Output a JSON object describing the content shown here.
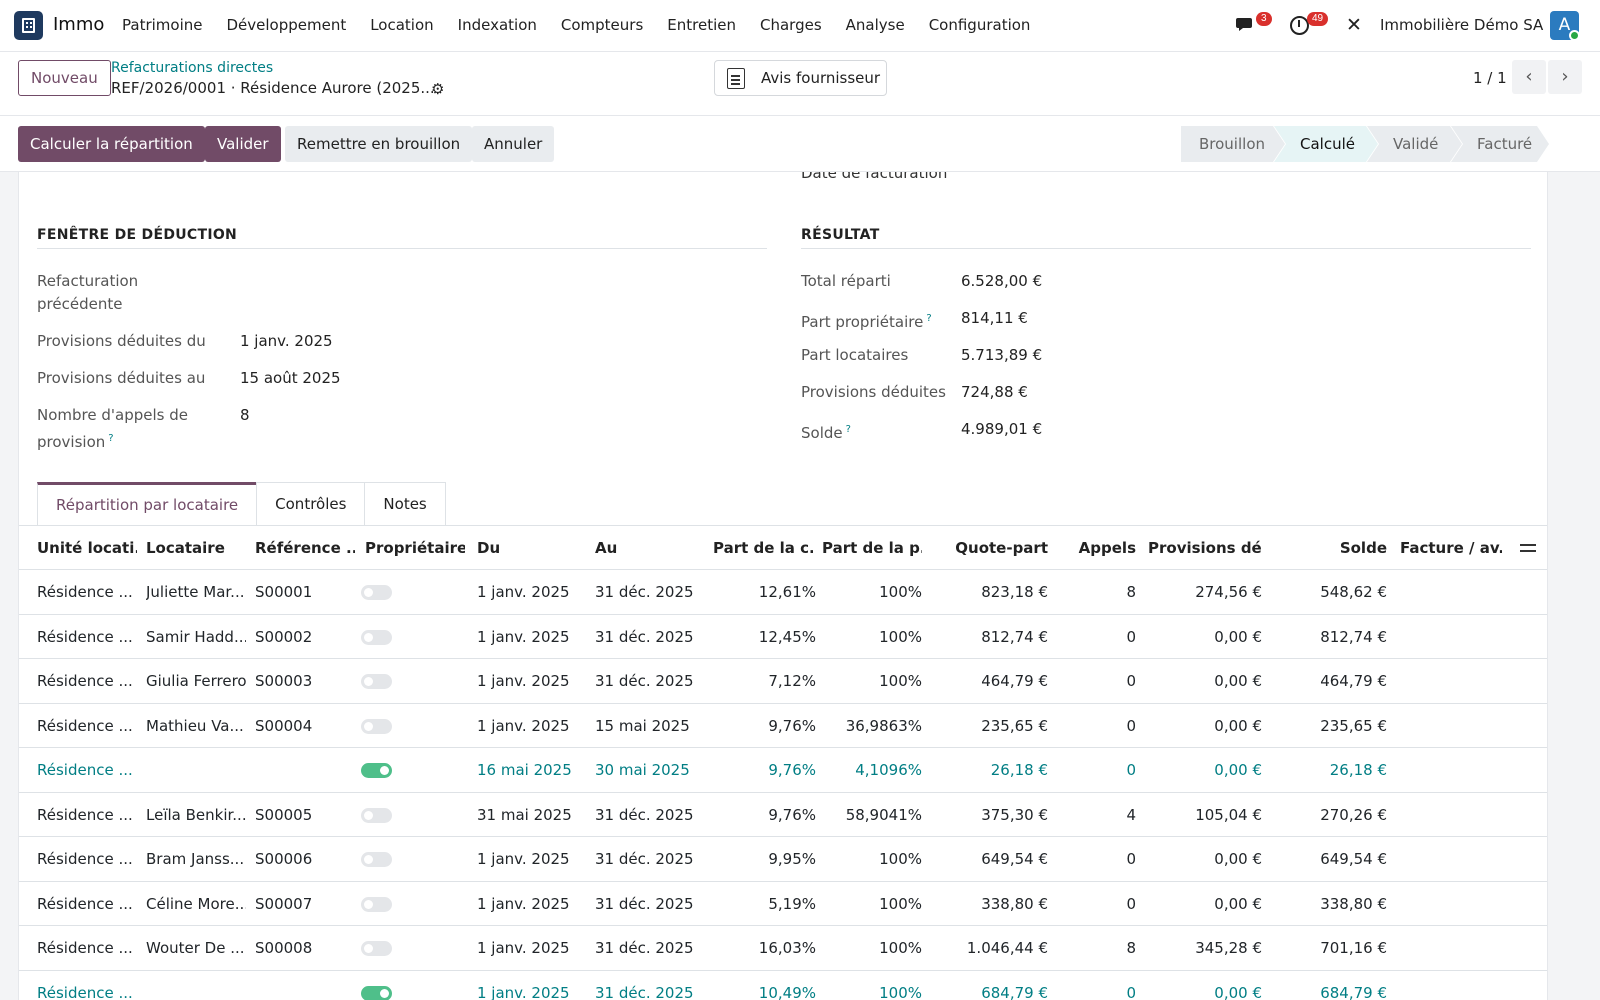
{
  "navbar": {
    "app_name": "Immo",
    "menu": [
      "Patrimoine",
      "Développement",
      "Location",
      "Indexation",
      "Compteurs",
      "Entretien",
      "Charges",
      "Analyse",
      "Configuration"
    ],
    "messages_count": "3",
    "activities_count": "49",
    "company": "Immobilière Démo SA",
    "avatar_letter": "A"
  },
  "control_panel": {
    "new_button": "Nouveau",
    "breadcrumb_parent": "Refacturations directes",
    "breadcrumb_current": "REF/2026/0001 · Résidence Aurore (2025...",
    "smart_button": "Avis fournisseur",
    "pager": "1 / 1"
  },
  "actions": {
    "compute": "Calculer la répartition",
    "validate": "Valider",
    "reset_draft": "Remettre en brouillon",
    "cancel": "Annuler"
  },
  "stages": [
    {
      "label": "Brouillon",
      "current": false
    },
    {
      "label": "Calculé",
      "current": true
    },
    {
      "label": "Validé",
      "current": false
    },
    {
      "label": "Facturé",
      "current": false
    }
  ],
  "form": {
    "cut_off_label": "Date de facturation",
    "deduction": {
      "title": "FENÊTRE DE DÉDUCTION",
      "previous_label": "Refacturation précédente",
      "from_label": "Provisions déduites du",
      "from_value": "1 janv. 2025",
      "to_label": "Provisions déduites au",
      "to_value": "15 août 2025",
      "calls_label": "Nombre d'appels de provision",
      "calls_value": "8",
      "help_mark": "?"
    },
    "result": {
      "title": "RÉSULTAT",
      "total_label": "Total réparti",
      "total_value": "6.528,00 €",
      "owner_label": "Part propriétaire",
      "owner_value": "814,11 €",
      "tenants_label": "Part locataires",
      "tenants_value": "5.713,89 €",
      "provisions_label": "Provisions déduites",
      "provisions_value": "724,88 €",
      "balance_label": "Solde",
      "balance_value": "4.989,01 €",
      "help_mark": "?"
    }
  },
  "tabs": [
    "Répartition par locataire",
    "Contrôles",
    "Notes"
  ],
  "table": {
    "headers": [
      "Unité locati...",
      "Locataire",
      "Référence ...",
      "Propriétaire",
      "Du",
      "Au",
      "Part de la c...",
      "Part de la p...",
      "Quote-part",
      "Appels",
      "Provisions dé...",
      "Solde",
      "Facture / av..."
    ],
    "rows": [
      {
        "unit": "Résidence ...",
        "tenant": "Juliette Mar...",
        "ref": "S00001",
        "owner": false,
        "from": "1 janv. 2025",
        "to": "31 déc. 2025",
        "share_c": "12,61%",
        "share_p": "100%",
        "quota": "823,18 €",
        "calls": "8",
        "prov": "274,56 €",
        "balance": "548,62 €",
        "highlight": false
      },
      {
        "unit": "Résidence ...",
        "tenant": "Samir Hadd...",
        "ref": "S00002",
        "owner": false,
        "from": "1 janv. 2025",
        "to": "31 déc. 2025",
        "share_c": "12,45%",
        "share_p": "100%",
        "quota": "812,74 €",
        "calls": "0",
        "prov": "0,00 €",
        "balance": "812,74 €",
        "highlight": false
      },
      {
        "unit": "Résidence ...",
        "tenant": "Giulia Ferrero",
        "ref": "S00003",
        "owner": false,
        "from": "1 janv. 2025",
        "to": "31 déc. 2025",
        "share_c": "7,12%",
        "share_p": "100%",
        "quota": "464,79 €",
        "calls": "0",
        "prov": "0,00 €",
        "balance": "464,79 €",
        "highlight": false
      },
      {
        "unit": "Résidence ...",
        "tenant": "Mathieu Va...",
        "ref": "S00004",
        "owner": false,
        "from": "1 janv. 2025",
        "to": "15 mai 2025",
        "share_c": "9,76%",
        "share_p": "36,9863%",
        "quota": "235,65 €",
        "calls": "0",
        "prov": "0,00 €",
        "balance": "235,65 €",
        "highlight": false
      },
      {
        "unit": "Résidence ...",
        "tenant": "",
        "ref": "",
        "owner": true,
        "from": "16 mai 2025",
        "to": "30 mai 2025",
        "share_c": "9,76%",
        "share_p": "4,1096%",
        "quota": "26,18 €",
        "calls": "0",
        "prov": "0,00 €",
        "balance": "26,18 €",
        "highlight": true
      },
      {
        "unit": "Résidence ...",
        "tenant": "Leïla Benkir...",
        "ref": "S00005",
        "owner": false,
        "from": "31 mai 2025",
        "to": "31 déc. 2025",
        "share_c": "9,76%",
        "share_p": "58,9041%",
        "quota": "375,30 €",
        "calls": "4",
        "prov": "105,04 €",
        "balance": "270,26 €",
        "highlight": false
      },
      {
        "unit": "Résidence ...",
        "tenant": "Bram Janss...",
        "ref": "S00006",
        "owner": false,
        "from": "1 janv. 2025",
        "to": "31 déc. 2025",
        "share_c": "9,95%",
        "share_p": "100%",
        "quota": "649,54 €",
        "calls": "0",
        "prov": "0,00 €",
        "balance": "649,54 €",
        "highlight": false
      },
      {
        "unit": "Résidence ...",
        "tenant": "Céline More...",
        "ref": "S00007",
        "owner": false,
        "from": "1 janv. 2025",
        "to": "31 déc. 2025",
        "share_c": "5,19%",
        "share_p": "100%",
        "quota": "338,80 €",
        "calls": "0",
        "prov": "0,00 €",
        "balance": "338,80 €",
        "highlight": false
      },
      {
        "unit": "Résidence ...",
        "tenant": "Wouter De ...",
        "ref": "S00008",
        "owner": false,
        "from": "1 janv. 2025",
        "to": "31 déc. 2025",
        "share_c": "16,03%",
        "share_p": "100%",
        "quota": "1.046,44 €",
        "calls": "8",
        "prov": "345,28 €",
        "balance": "701,16 €",
        "highlight": false
      },
      {
        "unit": "Résidence ...",
        "tenant": "",
        "ref": "",
        "owner": true,
        "from": "1 janv. 2025",
        "to": "31 déc. 2025",
        "share_c": "10,49%",
        "share_p": "100%",
        "quota": "684,79 €",
        "calls": "0",
        "prov": "0,00 €",
        "balance": "684,79 €",
        "highlight": true
      }
    ]
  }
}
